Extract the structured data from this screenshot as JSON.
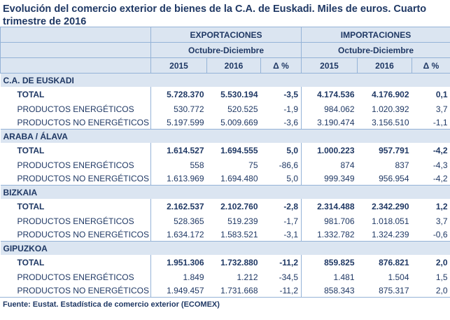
{
  "title": "Evolución del comercio exterior de bienes de la C.A. de Euskadi. Miles de euros. Cuarto trimestre de 2016",
  "header": {
    "groups": [
      "EXPORTACIONES",
      "IMPORTACIONES"
    ],
    "period": "Octubre-Diciembre",
    "years": [
      "2015",
      "2016"
    ],
    "delta": "Δ %"
  },
  "sections": [
    {
      "name": "C.A. DE EUSKADI",
      "rows": [
        {
          "label": "TOTAL",
          "values": [
            "5.728.370",
            "5.530.194",
            "-3,5",
            "4.174.536",
            "4.176.902",
            "0,1"
          ]
        },
        {
          "label": "PRODUCTOS ENERGÉTICOS",
          "values": [
            "530.772",
            "520.525",
            "-1,9",
            "984.062",
            "1.020.392",
            "3,7"
          ]
        },
        {
          "label": "PRODUCTOS NO ENERGÉTICOS",
          "values": [
            "5.197.599",
            "5.009.669",
            "-3,6",
            "3.190.474",
            "3.156.510",
            "-1,1"
          ]
        }
      ]
    },
    {
      "name": "ARABA / ÁLAVA",
      "rows": [
        {
          "label": "TOTAL",
          "values": [
            "1.614.527",
            "1.694.555",
            "5,0",
            "1.000.223",
            "957.791",
            "-4,2"
          ]
        },
        {
          "label": "PRODUCTOS ENERGÉTICOS",
          "values": [
            "558",
            "75",
            "-86,6",
            "874",
            "837",
            "-4,3"
          ]
        },
        {
          "label": "PRODUCTOS NO ENERGÉTICOS",
          "values": [
            "1.613.969",
            "1.694.480",
            "5,0",
            "999.349",
            "956.954",
            "-4,2"
          ]
        }
      ]
    },
    {
      "name": "BIZKAIA",
      "rows": [
        {
          "label": "TOTAL",
          "values": [
            "2.162.537",
            "2.102.760",
            "-2,8",
            "2.314.488",
            "2.342.290",
            "1,2"
          ]
        },
        {
          "label": "PRODUCTOS ENERGÉTICOS",
          "values": [
            "528.365",
            "519.239",
            "-1,7",
            "981.706",
            "1.018.051",
            "3,7"
          ]
        },
        {
          "label": "PRODUCTOS NO ENERGÉTICOS",
          "values": [
            "1.634.172",
            "1.583.521",
            "-3,1",
            "1.332.782",
            "1.324.239",
            "-0,6"
          ]
        }
      ]
    },
    {
      "name": "GIPUZKOA",
      "rows": [
        {
          "label": "TOTAL",
          "values": [
            "1.951.306",
            "1.732.880",
            "-11,2",
            "859.825",
            "876.821",
            "2,0"
          ]
        },
        {
          "label": "PRODUCTOS ENERGÉTICOS",
          "values": [
            "1.849",
            "1.212",
            "-34,5",
            "1.481",
            "1.504",
            "1,5"
          ]
        },
        {
          "label": "PRODUCTOS NO ENERGÉTICOS",
          "values": [
            "1.949.457",
            "1.731.668",
            "-11,2",
            "858.343",
            "875.317",
            "2,0"
          ]
        }
      ]
    }
  ],
  "source": "Fuente: Eustat. Estadística de comercio exterior (ECOMEX)"
}
